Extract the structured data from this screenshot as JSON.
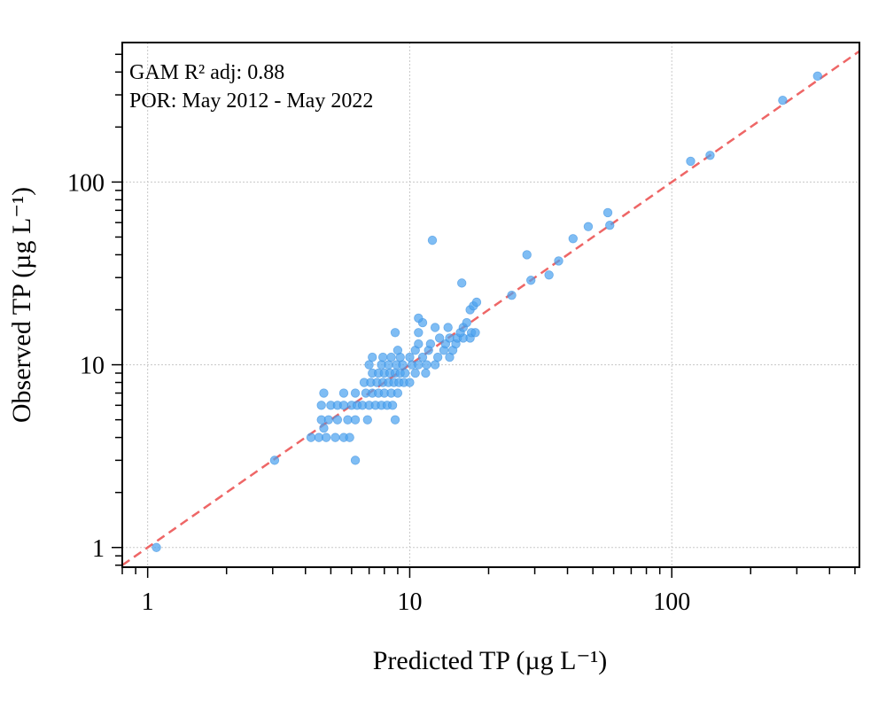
{
  "chart_data": {
    "type": "scatter",
    "title": "",
    "xlabel": "Predicted TP (µg L⁻¹)",
    "ylabel": "Observed TP (µg L⁻¹)",
    "xscale": "log",
    "yscale": "log",
    "xlim": [
      0.8,
      520
    ],
    "ylim": [
      0.78,
      580
    ],
    "x_ticks": [
      1,
      10,
      100
    ],
    "y_ticks": [
      1,
      10,
      100
    ],
    "x_tick_labels": [
      "1",
      "10",
      "100"
    ],
    "y_tick_labels": [
      "1",
      "10",
      "100"
    ],
    "grid": true,
    "annotations": [
      "GAM R² adj: 0.88",
      "POR: May 2012 - May 2022"
    ],
    "reference_line": {
      "type": "1:1",
      "style": "dashed",
      "color": "#ee6666"
    },
    "point_color": "#4da3f0",
    "series": [
      {
        "points": [
          [
            1.08,
            1
          ],
          [
            3.05,
            3
          ],
          [
            6.2,
            3
          ],
          [
            4.2,
            4
          ],
          [
            4.5,
            4
          ],
          [
            4.8,
            4
          ],
          [
            5.2,
            4
          ],
          [
            5.6,
            4
          ],
          [
            5.9,
            4
          ],
          [
            4.6,
            5
          ],
          [
            4.9,
            5
          ],
          [
            5.3,
            5
          ],
          [
            5.8,
            5
          ],
          [
            6.2,
            5
          ],
          [
            6.9,
            5
          ],
          [
            8.8,
            5
          ],
          [
            4.7,
            4.5
          ],
          [
            4.6,
            6
          ],
          [
            5.0,
            6
          ],
          [
            5.3,
            6
          ],
          [
            5.6,
            6
          ],
          [
            6.0,
            6
          ],
          [
            6.3,
            6
          ],
          [
            6.6,
            6
          ],
          [
            7.0,
            6
          ],
          [
            7.4,
            6
          ],
          [
            7.8,
            6
          ],
          [
            8.2,
            6
          ],
          [
            8.6,
            6
          ],
          [
            4.7,
            7
          ],
          [
            5.6,
            7
          ],
          [
            6.2,
            7
          ],
          [
            6.8,
            7
          ],
          [
            7.2,
            7
          ],
          [
            7.6,
            7
          ],
          [
            8.0,
            7
          ],
          [
            8.5,
            7
          ],
          [
            9.0,
            7
          ],
          [
            6.7,
            8
          ],
          [
            7.1,
            8
          ],
          [
            7.5,
            8
          ],
          [
            7.9,
            8
          ],
          [
            8.3,
            8
          ],
          [
            8.7,
            8
          ],
          [
            9.1,
            8
          ],
          [
            9.5,
            8
          ],
          [
            10.0,
            8
          ],
          [
            7.2,
            9
          ],
          [
            7.6,
            9
          ],
          [
            8.0,
            9
          ],
          [
            8.4,
            9
          ],
          [
            8.8,
            9
          ],
          [
            9.2,
            9
          ],
          [
            9.6,
            9
          ],
          [
            10.5,
            9
          ],
          [
            11.5,
            9
          ],
          [
            7.0,
            10
          ],
          [
            7.8,
            10
          ],
          [
            8.3,
            10
          ],
          [
            8.9,
            10
          ],
          [
            9.4,
            10
          ],
          [
            10.2,
            10
          ],
          [
            10.8,
            10
          ],
          [
            11.6,
            10
          ],
          [
            12.5,
            10
          ],
          [
            7.2,
            11
          ],
          [
            7.9,
            11
          ],
          [
            8.5,
            11
          ],
          [
            9.2,
            11
          ],
          [
            10.0,
            11
          ],
          [
            11.2,
            11
          ],
          [
            12.8,
            11
          ],
          [
            10.5,
            12
          ],
          [
            11.8,
            12
          ],
          [
            13.5,
            12
          ],
          [
            9.0,
            12
          ],
          [
            14.2,
            11
          ],
          [
            14.6,
            12
          ],
          [
            10.8,
            13
          ],
          [
            12.0,
            13
          ],
          [
            13.7,
            13
          ],
          [
            15.0,
            13
          ],
          [
            13.0,
            14
          ],
          [
            14.2,
            14
          ],
          [
            15.2,
            14
          ],
          [
            16.0,
            14
          ],
          [
            17.0,
            14
          ],
          [
            10.8,
            15
          ],
          [
            8.8,
            15
          ],
          [
            15.6,
            15
          ],
          [
            17.2,
            15
          ],
          [
            17.8,
            15
          ],
          [
            12.5,
            16
          ],
          [
            14.0,
            16
          ],
          [
            16.0,
            16
          ],
          [
            16.5,
            17
          ],
          [
            11.2,
            17
          ],
          [
            10.8,
            18
          ],
          [
            17.0,
            20
          ],
          [
            17.5,
            21
          ],
          [
            18.0,
            22
          ],
          [
            24.5,
            24
          ],
          [
            15.8,
            28
          ],
          [
            29.0,
            29
          ],
          [
            34.0,
            31
          ],
          [
            37.0,
            37
          ],
          [
            28.0,
            40
          ],
          [
            42.0,
            49
          ],
          [
            12.2,
            48
          ],
          [
            48.0,
            57
          ],
          [
            58.0,
            58
          ],
          [
            57.0,
            68
          ],
          [
            118.0,
            130
          ],
          [
            140.0,
            140
          ],
          [
            265.0,
            280
          ],
          [
            360.0,
            380
          ]
        ]
      }
    ]
  }
}
